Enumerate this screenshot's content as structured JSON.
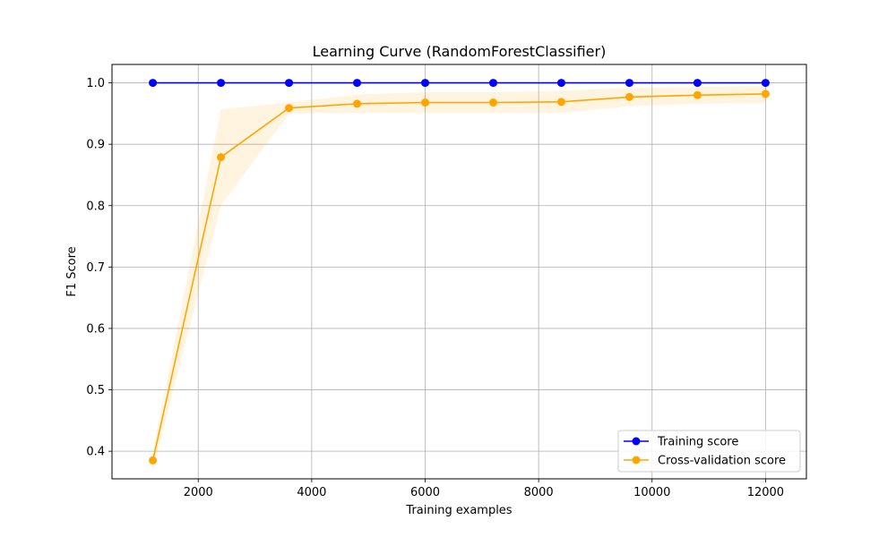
{
  "chart_data": {
    "type": "line",
    "title": "Learning Curve (RandomForestClassifier)",
    "xlabel": "Training examples",
    "ylabel": "F1 Score",
    "xlim": [
      480,
      12720
    ],
    "ylim": [
      0.355,
      1.03
    ],
    "xticks": [
      2000,
      4000,
      6000,
      8000,
      10000,
      12000
    ],
    "xtick_labels": [
      "2000",
      "4000",
      "6000",
      "8000",
      "10000",
      "12000"
    ],
    "yticks": [
      0.4,
      0.5,
      0.6,
      0.7,
      0.8,
      0.9,
      1.0
    ],
    "ytick_labels": [
      "0.4",
      "0.5",
      "0.6",
      "0.7",
      "0.8",
      "0.9",
      "1.0"
    ],
    "grid": true,
    "legend_position": "lower-right",
    "x": [
      1200,
      2400,
      3600,
      4800,
      6000,
      7200,
      8400,
      9600,
      10800,
      12000
    ],
    "series": [
      {
        "name": "Training score",
        "color": "#0000ff",
        "values": [
          1.0,
          1.0,
          1.0,
          1.0,
          1.0,
          1.0,
          1.0,
          1.0,
          1.0,
          1.0
        ]
      },
      {
        "name": "Cross-validation score",
        "color": "#ffa500",
        "values": [
          0.385,
          0.879,
          0.959,
          0.966,
          0.968,
          0.968,
          0.969,
          0.977,
          0.98,
          0.982
        ],
        "band_upper": [
          0.4,
          0.957,
          0.968,
          0.981,
          0.985,
          0.985,
          0.987,
          0.992,
          0.993,
          0.995
        ],
        "band_lower": [
          0.37,
          0.8,
          0.95,
          0.951,
          0.951,
          0.951,
          0.951,
          0.962,
          0.966,
          0.967
        ]
      }
    ]
  }
}
